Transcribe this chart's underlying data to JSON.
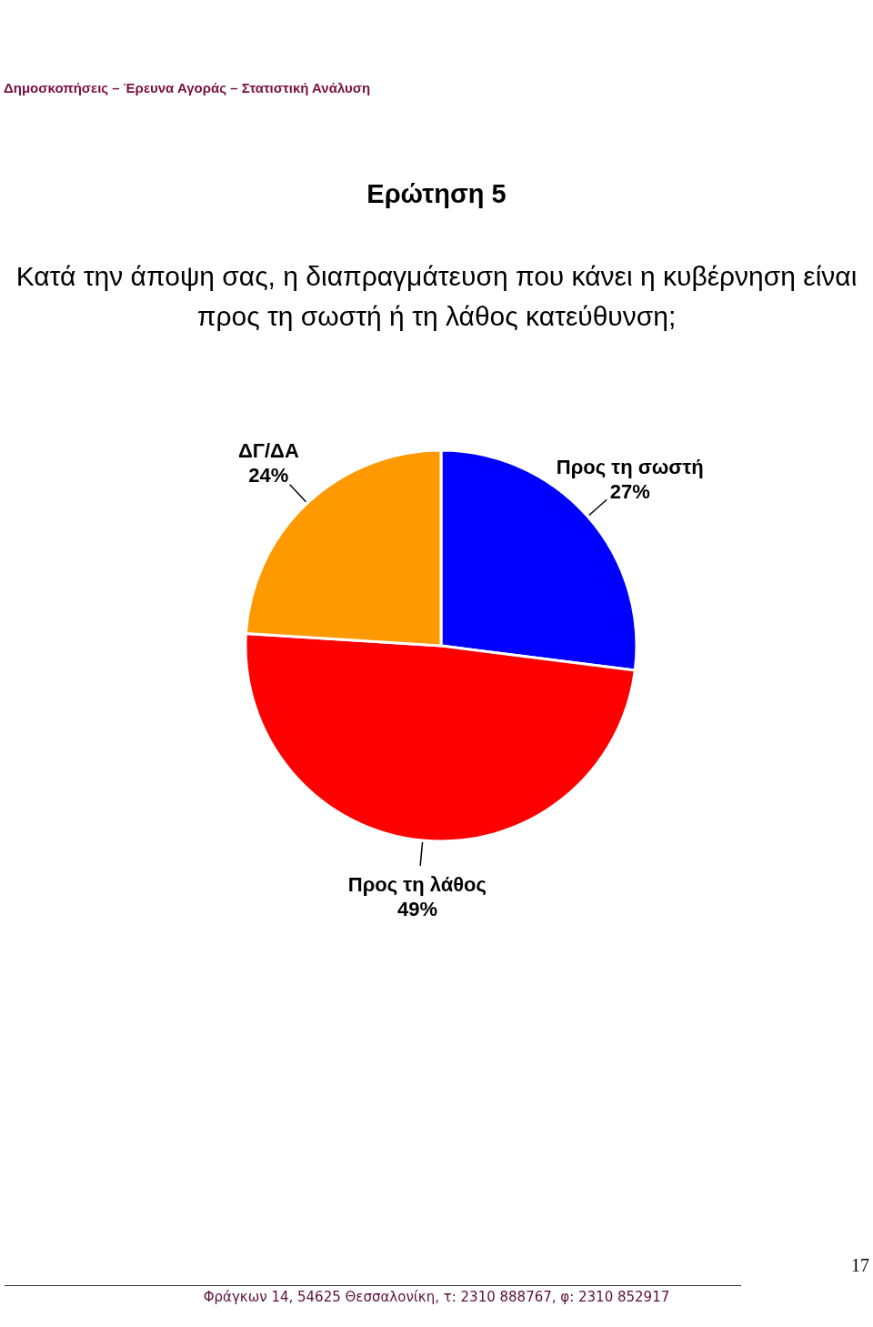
{
  "chart_data": {
    "type": "pie",
    "title": "Ερώτηση 5",
    "subtitle": "Κατά την άποψη σας, η διαπραγμάτευση που κάνει η κυβέρνηση είναι προς τη σωστή ή τη λάθος κατεύθυνση;",
    "categories": [
      "Προς τη σωστή",
      "Προς τη λάθος",
      "ΔΓ/ΔΑ"
    ],
    "values": [
      27,
      49,
      24
    ],
    "colors": [
      "#0000ff",
      "#ff0000",
      "#ff9900"
    ],
    "value_labels": [
      "27%",
      "49%",
      "24%"
    ],
    "annotations": [
      "Δημοσκοπήσεις – Έρευνα Αγοράς – Στατιστική Ανάλυση",
      "17",
      "Φράγκων 14, 54625 Θεσσαλονίκη, τ: 2310 888767, φ: 2310 852917"
    ]
  }
}
